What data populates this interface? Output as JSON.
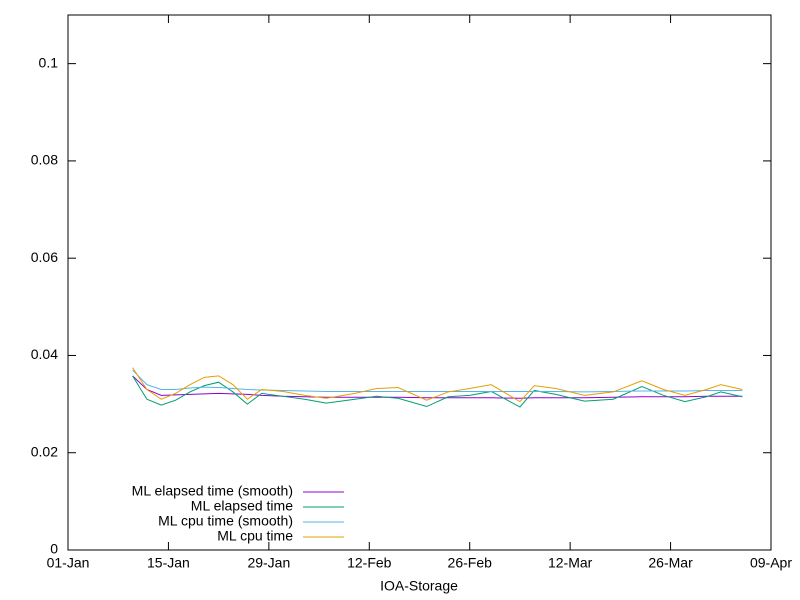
{
  "chart_data": {
    "type": "line",
    "xlabel": "IOA-Storage",
    "x": [
      9,
      11,
      13,
      15,
      17,
      19,
      21,
      23,
      25,
      27,
      30,
      33,
      36,
      40,
      43,
      46,
      50,
      53,
      56,
      59,
      63,
      65,
      68,
      72,
      76,
      80,
      83,
      86,
      89,
      91,
      94
    ],
    "xlim": [
      0,
      98
    ],
    "xticks": [
      {
        "value": 0,
        "label": "01-Jan"
      },
      {
        "value": 14,
        "label": "15-Jan"
      },
      {
        "value": 28,
        "label": "29-Jan"
      },
      {
        "value": 42,
        "label": "12-Feb"
      },
      {
        "value": 56,
        "label": "26-Feb"
      },
      {
        "value": 70,
        "label": "12-Mar"
      },
      {
        "value": 84,
        "label": "26-Mar"
      },
      {
        "value": 98,
        "label": "09-Apr"
      }
    ],
    "ylim": [
      0,
      0.11
    ],
    "yticks": [
      0,
      0.02,
      0.04,
      0.06,
      0.08,
      0.1
    ],
    "legend": "bottom-left",
    "series": [
      {
        "name": "ML elapsed time (smooth)",
        "color": "#9400d3",
        "values": [
          0.0358,
          0.033,
          0.0318,
          0.0319,
          0.032,
          0.0321,
          0.0322,
          0.0321,
          0.032,
          0.0318,
          0.0316,
          0.0315,
          0.0314,
          0.0314,
          0.0314,
          0.0314,
          0.0313,
          0.0313,
          0.0313,
          0.0313,
          0.0312,
          0.0313,
          0.0313,
          0.0313,
          0.0314,
          0.0315,
          0.0315,
          0.0315,
          0.0316,
          0.0316,
          0.0316
        ]
      },
      {
        "name": "ML elapsed time",
        "color": "#009e73",
        "values": [
          0.0358,
          0.031,
          0.0298,
          0.0308,
          0.0325,
          0.0338,
          0.0345,
          0.0325,
          0.03,
          0.0322,
          0.0316,
          0.031,
          0.0302,
          0.031,
          0.0316,
          0.0312,
          0.0295,
          0.0315,
          0.0318,
          0.0326,
          0.0294,
          0.0328,
          0.032,
          0.0306,
          0.031,
          0.0336,
          0.0318,
          0.0305,
          0.0315,
          0.0325,
          0.0315
        ]
      },
      {
        "name": "ML cpu time (smooth)",
        "color": "#56b4e9",
        "values": [
          0.037,
          0.034,
          0.033,
          0.033,
          0.0333,
          0.0335,
          0.0334,
          0.0332,
          0.033,
          0.0329,
          0.0328,
          0.0327,
          0.0326,
          0.0326,
          0.0326,
          0.0326,
          0.0326,
          0.0326,
          0.0326,
          0.0326,
          0.0326,
          0.0326,
          0.0326,
          0.0325,
          0.0326,
          0.0327,
          0.0327,
          0.0327,
          0.0328,
          0.0328,
          0.0328
        ]
      },
      {
        "name": "ML cpu time",
        "color": "#e69f00",
        "values": [
          0.0375,
          0.033,
          0.031,
          0.0322,
          0.034,
          0.0355,
          0.0358,
          0.034,
          0.031,
          0.033,
          0.0326,
          0.0318,
          0.0312,
          0.0322,
          0.0332,
          0.0334,
          0.0308,
          0.0325,
          0.0332,
          0.034,
          0.0305,
          0.0338,
          0.0332,
          0.0318,
          0.0325,
          0.0348,
          0.033,
          0.0318,
          0.033,
          0.034,
          0.033
        ]
      }
    ]
  }
}
